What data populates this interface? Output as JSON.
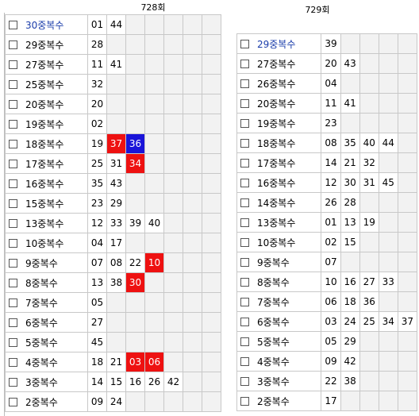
{
  "panels": [
    {
      "title": "728회",
      "rows": [
        {
          "label": "30중복수",
          "label_color": "blue",
          "nums": [
            {
              "v": "01"
            },
            {
              "v": "44"
            }
          ]
        },
        {
          "label": "29중복수",
          "nums": [
            {
              "v": "28"
            }
          ]
        },
        {
          "label": "27중복수",
          "nums": [
            {
              "v": "11"
            },
            {
              "v": "41"
            }
          ]
        },
        {
          "label": "25중복수",
          "nums": [
            {
              "v": "32"
            }
          ]
        },
        {
          "label": "20중복수",
          "nums": [
            {
              "v": "20"
            }
          ]
        },
        {
          "label": "19중복수",
          "nums": [
            {
              "v": "02"
            }
          ]
        },
        {
          "label": "18중복수",
          "nums": [
            {
              "v": "19"
            },
            {
              "v": "37",
              "c": "red"
            },
            {
              "v": "36",
              "c": "blue"
            }
          ]
        },
        {
          "label": "17중복수",
          "nums": [
            {
              "v": "25"
            },
            {
              "v": "31"
            },
            {
              "v": "34",
              "c": "red"
            }
          ]
        },
        {
          "label": "16중복수",
          "nums": [
            {
              "v": "35"
            },
            {
              "v": "43"
            }
          ]
        },
        {
          "label": "15중복수",
          "nums": [
            {
              "v": "23"
            },
            {
              "v": "29"
            }
          ]
        },
        {
          "label": "13중복수",
          "nums": [
            {
              "v": "12"
            },
            {
              "v": "33"
            },
            {
              "v": "39"
            },
            {
              "v": "40"
            }
          ]
        },
        {
          "label": "10중복수",
          "nums": [
            {
              "v": "04"
            },
            {
              "v": "17"
            }
          ]
        },
        {
          "label": "9중복수",
          "nums": [
            {
              "v": "07"
            },
            {
              "v": "08"
            },
            {
              "v": "22"
            },
            {
              "v": "10",
              "c": "red"
            }
          ]
        },
        {
          "label": "8중복수",
          "nums": [
            {
              "v": "13"
            },
            {
              "v": "38"
            },
            {
              "v": "30",
              "c": "red"
            }
          ]
        },
        {
          "label": "7중복수",
          "nums": [
            {
              "v": "05"
            }
          ]
        },
        {
          "label": "6중복수",
          "nums": [
            {
              "v": "27"
            }
          ]
        },
        {
          "label": "5중복수",
          "nums": [
            {
              "v": "45"
            }
          ]
        },
        {
          "label": "4중복수",
          "nums": [
            {
              "v": "18"
            },
            {
              "v": "21"
            },
            {
              "v": "03",
              "c": "red"
            },
            {
              "v": "06",
              "c": "red"
            }
          ]
        },
        {
          "label": "3중복수",
          "nums": [
            {
              "v": "14"
            },
            {
              "v": "15"
            },
            {
              "v": "16"
            },
            {
              "v": "26"
            },
            {
              "v": "42"
            }
          ]
        },
        {
          "label": "2중복수",
          "nums": [
            {
              "v": "09"
            },
            {
              "v": "24"
            }
          ]
        }
      ]
    },
    {
      "title": "729회",
      "rows": [
        {
          "label": "29중복수",
          "label_color": "blue",
          "nums": [
            {
              "v": "39"
            }
          ]
        },
        {
          "label": "27중복수",
          "nums": [
            {
              "v": "20"
            },
            {
              "v": "43"
            }
          ]
        },
        {
          "label": "26중복수",
          "nums": [
            {
              "v": "04"
            }
          ]
        },
        {
          "label": "20중복수",
          "nums": [
            {
              "v": "11"
            },
            {
              "v": "41"
            }
          ]
        },
        {
          "label": "19중복수",
          "nums": [
            {
              "v": "23"
            }
          ]
        },
        {
          "label": "18중복수",
          "nums": [
            {
              "v": "08"
            },
            {
              "v": "35"
            },
            {
              "v": "40"
            },
            {
              "v": "44"
            }
          ]
        },
        {
          "label": "17중복수",
          "nums": [
            {
              "v": "14"
            },
            {
              "v": "21"
            },
            {
              "v": "32"
            }
          ]
        },
        {
          "label": "16중복수",
          "nums": [
            {
              "v": "12"
            },
            {
              "v": "30"
            },
            {
              "v": "31"
            },
            {
              "v": "45"
            }
          ]
        },
        {
          "label": "14중복수",
          "nums": [
            {
              "v": "26"
            },
            {
              "v": "28"
            }
          ]
        },
        {
          "label": "13중복수",
          "nums": [
            {
              "v": "01"
            },
            {
              "v": "13"
            },
            {
              "v": "19"
            }
          ]
        },
        {
          "label": "10중복수",
          "nums": [
            {
              "v": "02"
            },
            {
              "v": "15"
            }
          ]
        },
        {
          "label": "9중복수",
          "nums": [
            {
              "v": "07"
            }
          ]
        },
        {
          "label": "8중복수",
          "nums": [
            {
              "v": "10"
            },
            {
              "v": "16"
            },
            {
              "v": "27"
            },
            {
              "v": "33"
            }
          ]
        },
        {
          "label": "7중복수",
          "nums": [
            {
              "v": "06"
            },
            {
              "v": "18"
            },
            {
              "v": "36"
            }
          ]
        },
        {
          "label": "6중복수",
          "nums": [
            {
              "v": "03"
            },
            {
              "v": "24"
            },
            {
              "v": "25"
            },
            {
              "v": "34"
            },
            {
              "v": "37"
            }
          ]
        },
        {
          "label": "5중복수",
          "nums": [
            {
              "v": "05"
            },
            {
              "v": "29"
            }
          ]
        },
        {
          "label": "4중복수",
          "nums": [
            {
              "v": "09"
            },
            {
              "v": "42"
            }
          ]
        },
        {
          "label": "3중복수",
          "nums": [
            {
              "v": "22"
            },
            {
              "v": "38"
            }
          ]
        },
        {
          "label": "2중복수",
          "nums": [
            {
              "v": "17"
            }
          ]
        }
      ]
    }
  ],
  "colors": {
    "red": "#ee1111",
    "blue_cell": "#1a14d9",
    "blue_label": "#1a3caa",
    "empty": "#f2f2f2"
  },
  "icons": {
    "checkbox": "checkbox-icon"
  }
}
